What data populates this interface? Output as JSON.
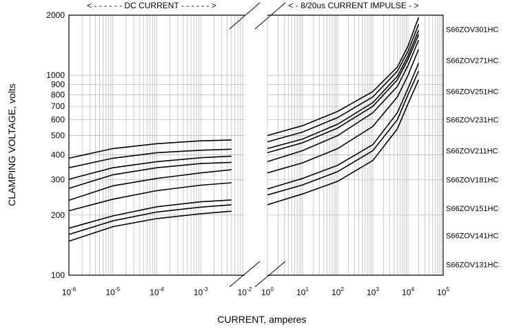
{
  "chart_data": {
    "type": "line",
    "title": "",
    "xlabel": "CURRENT, amperes",
    "ylabel": "CLAMPING VOLTAGE, volts",
    "y_scale": "log",
    "x_scale": "log",
    "ylim": [
      100,
      2000
    ],
    "grid": true,
    "header_left": "< - - - - - - DC CURRENT - - - - - - >",
    "header_right": "< - 8/20us CURRENT IMPULSE - >",
    "y_ticks": [
      "100",
      "200",
      "300",
      "400",
      "500",
      "600",
      "700",
      "800",
      "900",
      "1000",
      "2000"
    ],
    "x_ticks_dc": [
      {
        "base": "10",
        "exp": "-6"
      },
      {
        "base": "10",
        "exp": "-5"
      },
      {
        "base": "10",
        "exp": "-4"
      },
      {
        "base": "10",
        "exp": "-3"
      },
      {
        "base": "10",
        "exp": "-2"
      }
    ],
    "x_ticks_impulse": [
      {
        "base": "10",
        "exp": "0"
      },
      {
        "base": "10",
        "exp": "1"
      },
      {
        "base": "10",
        "exp": "2"
      },
      {
        "base": "10",
        "exp": "3"
      },
      {
        "base": "10",
        "exp": "4"
      },
      {
        "base": "10",
        "exp": "5"
      }
    ],
    "x_range_dc": [
      1e-06,
      0.01
    ],
    "x_range_impulse": [
      1,
      100000
    ],
    "legend_labels": [
      {
        "name": "S66ZOV301HC",
        "y": 1700
      },
      {
        "name": "S66ZOV271HC",
        "y": 1190
      },
      {
        "name": "S66ZOV251HC",
        "y": 830
      },
      {
        "name": "S66ZOV231HC",
        "y": 600
      },
      {
        "name": "S66ZOV211HC",
        "y": 420
      },
      {
        "name": "S66ZOV181HC",
        "y": 300
      },
      {
        "name": "S66ZOV151HC",
        "y": 216
      },
      {
        "name": "S66ZOV141HC",
        "y": 158
      },
      {
        "name": "S66ZOV131HC",
        "y": 113
      }
    ],
    "series": [
      {
        "dc": [
          [
            1e-06,
            385
          ],
          [
            1e-05,
            430
          ],
          [
            0.0001,
            455
          ],
          [
            0.001,
            470
          ],
          [
            0.005,
            475
          ]
        ],
        "impulse": [
          [
            1,
            500
          ],
          [
            10,
            560
          ],
          [
            100,
            660
          ],
          [
            1000,
            830
          ],
          [
            5000,
            1100
          ],
          [
            10000,
            1400
          ],
          [
            20000,
            1950
          ]
        ]
      },
      {
        "dc": [
          [
            1e-06,
            345
          ],
          [
            1e-05,
            385
          ],
          [
            0.0001,
            410
          ],
          [
            0.001,
            422
          ],
          [
            0.005,
            427
          ]
        ],
        "impulse": [
          [
            1,
            465
          ],
          [
            10,
            520
          ],
          [
            100,
            615
          ],
          [
            1000,
            780
          ],
          [
            5000,
            1050
          ],
          [
            10000,
            1320
          ],
          [
            20000,
            1800
          ]
        ]
      },
      {
        "dc": [
          [
            1e-06,
            302
          ],
          [
            1e-05,
            345
          ],
          [
            0.0001,
            370
          ],
          [
            0.001,
            387
          ],
          [
            0.005,
            394
          ]
        ],
        "impulse": [
          [
            1,
            430
          ],
          [
            10,
            480
          ],
          [
            100,
            570
          ],
          [
            1000,
            730
          ],
          [
            5000,
            990
          ],
          [
            10000,
            1250
          ],
          [
            20000,
            1680
          ]
        ]
      },
      {
        "dc": [
          [
            1e-06,
            272
          ],
          [
            1e-05,
            318
          ],
          [
            0.0001,
            345
          ],
          [
            0.001,
            362
          ],
          [
            0.005,
            367
          ]
        ],
        "impulse": [
          [
            1,
            410
          ],
          [
            10,
            460
          ],
          [
            100,
            545
          ],
          [
            1000,
            700
          ],
          [
            5000,
            950
          ],
          [
            10000,
            1200
          ],
          [
            20000,
            1600
          ]
        ]
      },
      {
        "dc": [
          [
            1e-06,
            237
          ],
          [
            1e-05,
            280
          ],
          [
            0.0001,
            305
          ],
          [
            0.001,
            325
          ],
          [
            0.005,
            337
          ]
        ],
        "impulse": [
          [
            1,
            370
          ],
          [
            10,
            420
          ],
          [
            100,
            500
          ],
          [
            1000,
            650
          ],
          [
            5000,
            880
          ],
          [
            10000,
            1120
          ],
          [
            20000,
            1500
          ]
        ]
      },
      {
        "dc": [
          [
            1e-06,
            210
          ],
          [
            1e-05,
            240
          ],
          [
            0.0001,
            265
          ],
          [
            0.001,
            282
          ],
          [
            0.005,
            290
          ]
        ],
        "impulse": [
          [
            1,
            325
          ],
          [
            10,
            365
          ],
          [
            100,
            430
          ],
          [
            1000,
            555
          ],
          [
            5000,
            780
          ],
          [
            10000,
            1000
          ],
          [
            20000,
            1350
          ]
        ]
      },
      {
        "dc": [
          [
            1e-06,
            172
          ],
          [
            1e-05,
            198
          ],
          [
            0.0001,
            220
          ],
          [
            0.001,
            233
          ],
          [
            0.005,
            238
          ]
        ],
        "impulse": [
          [
            1,
            270
          ],
          [
            10,
            305
          ],
          [
            100,
            355
          ],
          [
            1000,
            450
          ],
          [
            5000,
            650
          ],
          [
            10000,
            860
          ],
          [
            20000,
            1150
          ]
        ]
      },
      {
        "dc": [
          [
            1e-06,
            160
          ],
          [
            1e-05,
            187
          ],
          [
            0.0001,
            207
          ],
          [
            0.001,
            219
          ],
          [
            0.005,
            225
          ]
        ],
        "impulse": [
          [
            1,
            252
          ],
          [
            10,
            283
          ],
          [
            100,
            330
          ],
          [
            1000,
            420
          ],
          [
            5000,
            600
          ],
          [
            10000,
            800
          ],
          [
            20000,
            1050
          ]
        ]
      },
      {
        "dc": [
          [
            1e-06,
            148
          ],
          [
            1e-05,
            175
          ],
          [
            0.0001,
            192
          ],
          [
            0.001,
            203
          ],
          [
            0.005,
            209
          ]
        ],
        "impulse": [
          [
            1,
            225
          ],
          [
            10,
            255
          ],
          [
            100,
            295
          ],
          [
            1000,
            375
          ],
          [
            5000,
            540
          ],
          [
            10000,
            720
          ],
          [
            20000,
            950
          ]
        ]
      }
    ]
  }
}
